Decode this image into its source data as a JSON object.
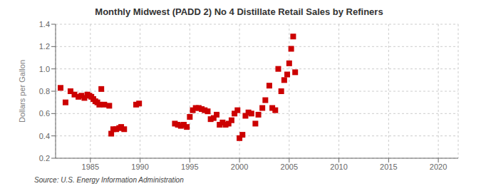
{
  "chart_data": {
    "type": "scatter",
    "title": "Monthly Midwest (PADD 2) No 4 Distillate Retail Sales by Refiners",
    "ylabel": "Dollars per Gallon",
    "annotations": [
      "Source: U.S. Energy Information Administration"
    ],
    "color": "#cc0000",
    "marker": "square",
    "grid": true,
    "xlim": [
      1981.5,
      2022
    ],
    "ylim": [
      0.2,
      1.4
    ],
    "xticks": [
      1985,
      1990,
      1995,
      2000,
      2005,
      2010,
      2015,
      2020
    ],
    "yticks": [
      0.2,
      0.4,
      0.6,
      0.8,
      {
        "value": 1,
        "label": "1.0"
      },
      1.2,
      1.4
    ],
    "x": [
      1982.0,
      1982.5,
      1983.0,
      1983.4,
      1983.8,
      1984.1,
      1984.4,
      1984.7,
      1984.9,
      1985.1,
      1985.3,
      1985.5,
      1985.7,
      1985.9,
      1986.1,
      1986.4,
      1986.9,
      1987.1,
      1987.3,
      1987.6,
      1987.9,
      1988.1,
      1988.4,
      1989.6,
      1989.9,
      1993.5,
      1993.8,
      1994.1,
      1994.4,
      1994.7,
      1995.0,
      1995.3,
      1995.6,
      1995.9,
      1996.2,
      1996.5,
      1996.8,
      1997.1,
      1997.4,
      1997.7,
      1998.0,
      1998.3,
      1998.6,
      1998.9,
      1999.2,
      1999.5,
      1999.8,
      2000.0,
      2000.3,
      2000.6,
      2000.9,
      2001.2,
      2001.6,
      2001.9,
      2002.3,
      2002.6,
      2003.0,
      2003.3,
      2003.6,
      2003.9,
      2004.2,
      2004.5,
      2004.8,
      2005.0,
      2005.2,
      2005.4,
      2005.6
    ],
    "values": [
      0.83,
      0.7,
      0.8,
      0.77,
      0.75,
      0.76,
      0.74,
      0.77,
      0.76,
      0.75,
      0.73,
      0.71,
      0.7,
      0.68,
      0.82,
      0.68,
      0.67,
      0.42,
      0.46,
      0.46,
      0.47,
      0.48,
      0.46,
      0.68,
      0.69,
      0.51,
      0.5,
      0.49,
      0.5,
      0.48,
      0.57,
      0.63,
      0.65,
      0.65,
      0.64,
      0.63,
      0.62,
      0.55,
      0.56,
      0.59,
      0.5,
      0.52,
      0.5,
      0.51,
      0.54,
      0.6,
      0.63,
      0.38,
      0.41,
      0.58,
      0.61,
      0.6,
      0.51,
      0.59,
      0.65,
      0.72,
      0.85,
      0.65,
      0.63,
      1.0,
      0.8,
      0.9,
      0.95,
      1.05,
      1.18,
      1.29,
      0.97
    ]
  }
}
